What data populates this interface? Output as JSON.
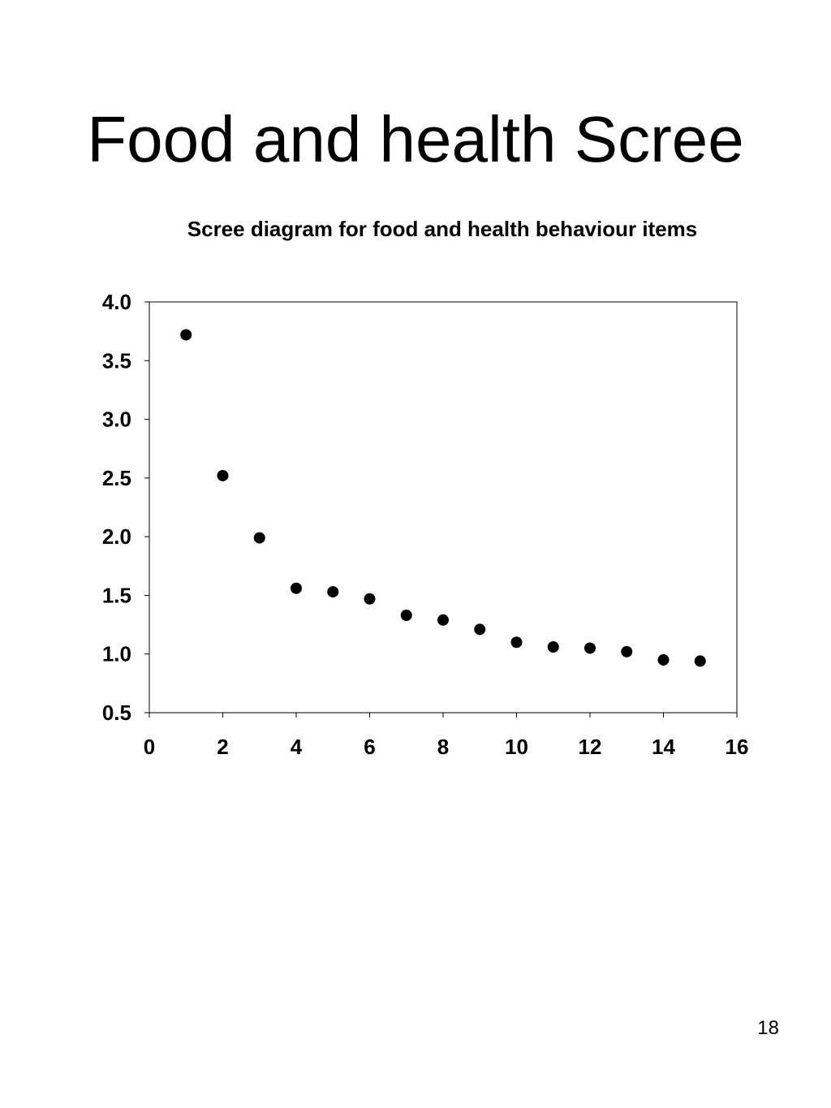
{
  "slide": {
    "title": "Food and health Scree",
    "page_number": "18"
  },
  "chart_data": {
    "type": "scatter",
    "title": "Scree diagram for food and health behaviour items",
    "xlabel": "",
    "ylabel": "",
    "xlim": [
      0,
      16
    ],
    "ylim": [
      0.5,
      4.0
    ],
    "x_ticks": [
      "0",
      "2",
      "4",
      "6",
      "8",
      "10",
      "12",
      "14",
      "16"
    ],
    "y_ticks": [
      "4.0",
      "3.5",
      "3.0",
      "2.5",
      "2.0",
      "1.5",
      "1.0",
      "0.5"
    ],
    "grid": false,
    "legend": "none",
    "marker_color": "#000000",
    "x": [
      1,
      2,
      3,
      4,
      5,
      6,
      7,
      8,
      9,
      10,
      11,
      12,
      13,
      14,
      15
    ],
    "y": [
      3.72,
      2.52,
      1.99,
      1.56,
      1.53,
      1.47,
      1.33,
      1.29,
      1.21,
      1.1,
      1.06,
      1.05,
      1.02,
      0.95,
      0.94
    ]
  }
}
